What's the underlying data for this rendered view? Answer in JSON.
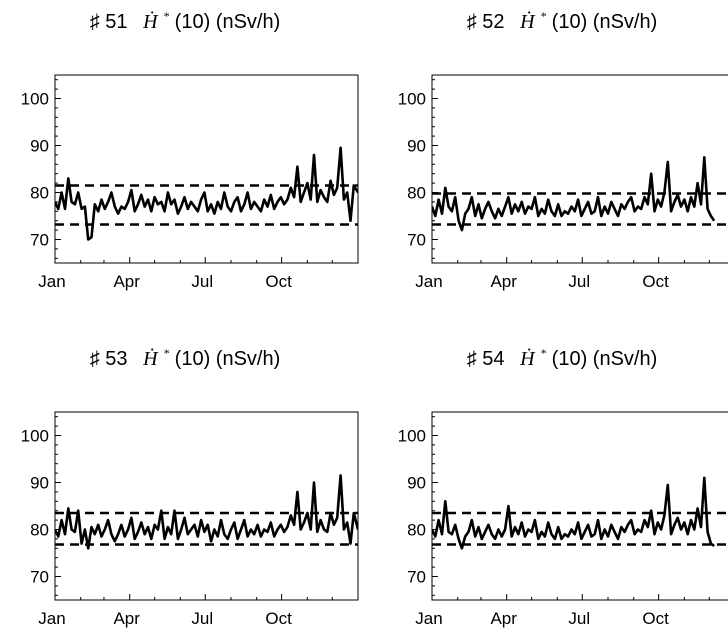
{
  "chart_data": [
    {
      "type": "line",
      "title": "♯ 51  Ḣ*(10) (nSv/h)",
      "title_parts": {
        "prefix": "♯ 51",
        "symbol": "Ḣ",
        "sup": "*",
        "suffix": "(10) (nSv/h)"
      },
      "x_tick_labels": [
        "Jan",
        "Apr",
        "Jul",
        "Oct"
      ],
      "x_ticks": [
        0,
        90,
        181,
        273
      ],
      "xlim": [
        0,
        365
      ],
      "y_tick_labels": [
        "70",
        "80",
        "90",
        "100"
      ],
      "y_ticks": [
        70,
        80,
        90,
        100
      ],
      "ylim": [
        65,
        105
      ],
      "reference_lines": [
        73.2,
        81.5
      ],
      "series": [
        {
          "x": [
            0,
            4,
            8,
            12,
            16,
            20,
            24,
            28,
            32,
            36,
            40,
            44,
            48,
            52,
            56,
            60,
            64,
            68,
            72,
            76,
            80,
            84,
            88,
            92,
            96,
            100,
            104,
            108,
            112,
            116,
            120,
            124,
            128,
            132,
            136,
            140,
            144,
            148,
            152,
            156,
            160,
            164,
            168,
            172,
            176,
            180,
            184,
            188,
            192,
            196,
            200,
            204,
            208,
            212,
            216,
            220,
            224,
            228,
            232,
            236,
            240,
            244,
            248,
            252,
            256,
            260,
            264,
            268,
            272,
            276,
            280,
            284,
            288,
            292,
            296,
            300,
            304,
            308,
            312,
            316,
            320,
            324,
            328,
            332,
            336,
            340,
            344,
            348,
            352,
            356,
            360,
            365
          ],
          "y": [
            78,
            76.5,
            80,
            76.5,
            83,
            78,
            77.5,
            80,
            76.5,
            77,
            70,
            70.5,
            77.5,
            76,
            78.5,
            76.5,
            78,
            80,
            77,
            75.5,
            77,
            76.5,
            78,
            80.5,
            76,
            77.5,
            79.5,
            77,
            78.5,
            76,
            79,
            77.5,
            78,
            76,
            80,
            77.5,
            78.5,
            75.5,
            77,
            79,
            76.5,
            78,
            77,
            76,
            78.5,
            80,
            76,
            77.5,
            75.5,
            78,
            76.5,
            80,
            77,
            76,
            78,
            79,
            76,
            77.5,
            80,
            76.5,
            78,
            77,
            76,
            78.5,
            77,
            79.5,
            76.5,
            78,
            79,
            77.5,
            78.5,
            81,
            79,
            85.5,
            78,
            80,
            82,
            78.5,
            88,
            78,
            80.5,
            79,
            78,
            82.5,
            79.5,
            81,
            89.5,
            78.5,
            80,
            74,
            81.5,
            80
          ]
        }
      ]
    },
    {
      "type": "line",
      "title": "♯ 52  Ḣ*(10) (nSv/h)",
      "title_parts": {
        "prefix": "♯ 52",
        "symbol": "Ḣ",
        "sup": "*",
        "suffix": "(10) (nSv/h)"
      },
      "x_tick_labels": [
        "Jan",
        "Apr",
        "Jul",
        "Oct"
      ],
      "x_ticks": [
        0,
        90,
        181,
        273
      ],
      "xlim": [
        0,
        365
      ],
      "y_tick_labels": [
        "70",
        "80",
        "90",
        "100"
      ],
      "y_ticks": [
        70,
        80,
        90,
        100
      ],
      "ylim": [
        65,
        105
      ],
      "reference_lines": [
        73.2,
        79.8
      ],
      "series": [
        {
          "x": [
            0,
            4,
            8,
            12,
            16,
            20,
            24,
            28,
            32,
            36,
            40,
            44,
            48,
            52,
            56,
            60,
            64,
            68,
            72,
            76,
            80,
            84,
            88,
            92,
            96,
            100,
            104,
            108,
            112,
            116,
            120,
            124,
            128,
            132,
            136,
            140,
            144,
            148,
            152,
            156,
            160,
            164,
            168,
            172,
            176,
            180,
            184,
            188,
            192,
            196,
            200,
            204,
            208,
            212,
            216,
            220,
            224,
            228,
            232,
            236,
            240,
            244,
            248,
            252,
            256,
            260,
            264,
            268,
            272,
            276,
            280,
            284,
            288,
            292,
            296,
            300,
            304,
            308,
            312,
            316,
            320,
            324,
            328,
            332,
            336,
            340
          ],
          "y": [
            77,
            75,
            78.5,
            75.5,
            81,
            77,
            76,
            79,
            74,
            72,
            75.5,
            76.5,
            79,
            75,
            77.5,
            74.5,
            76.5,
            78,
            76,
            74.5,
            76.5,
            75,
            77,
            79,
            75.5,
            77.5,
            76,
            78,
            75.5,
            77,
            76.5,
            79,
            75,
            76.5,
            75.5,
            78.5,
            76,
            75,
            77.5,
            75,
            76,
            75.5,
            77,
            76,
            78.5,
            75,
            76.5,
            78,
            75.5,
            76,
            79,
            75,
            77,
            75.5,
            78,
            76.5,
            75,
            77.5,
            76.5,
            78,
            79,
            76,
            77,
            76.5,
            79,
            77.5,
            84,
            76,
            78.5,
            77,
            80,
            86.5,
            76,
            78,
            79.5,
            77,
            78.5,
            76,
            79,
            77,
            82,
            77.5,
            87.5,
            76.5,
            75,
            74
          ]
        }
      ]
    },
    {
      "type": "line",
      "title": "♯ 53  Ḣ*(10) (nSv/h)",
      "title_parts": {
        "prefix": "♯ 53",
        "symbol": "Ḣ",
        "sup": "*",
        "suffix": "(10) (nSv/h)"
      },
      "x_tick_labels": [
        "Jan",
        "Apr",
        "Jul",
        "Oct"
      ],
      "x_ticks": [
        0,
        90,
        181,
        273
      ],
      "xlim": [
        0,
        365
      ],
      "y_tick_labels": [
        "70",
        "80",
        "90",
        "100"
      ],
      "y_ticks": [
        70,
        80,
        90,
        100
      ],
      "ylim": [
        65,
        105
      ],
      "reference_lines": [
        76.8,
        83.5
      ],
      "series": [
        {
          "x": [
            0,
            4,
            8,
            12,
            16,
            20,
            24,
            28,
            32,
            36,
            40,
            44,
            48,
            52,
            56,
            60,
            64,
            68,
            72,
            76,
            80,
            84,
            88,
            92,
            96,
            100,
            104,
            108,
            112,
            116,
            120,
            124,
            128,
            132,
            136,
            140,
            144,
            148,
            152,
            156,
            160,
            164,
            168,
            172,
            176,
            180,
            184,
            188,
            192,
            196,
            200,
            204,
            208,
            212,
            216,
            220,
            224,
            228,
            232,
            236,
            240,
            244,
            248,
            252,
            256,
            260,
            264,
            268,
            272,
            276,
            280,
            284,
            288,
            292,
            296,
            300,
            304,
            308,
            312,
            316,
            320,
            324,
            328,
            332,
            336,
            340,
            344,
            348,
            352,
            356,
            360,
            365
          ],
          "y": [
            80,
            78.5,
            82,
            79,
            84.5,
            80,
            79.5,
            84,
            77,
            80,
            76,
            80.5,
            79,
            81,
            78.5,
            80,
            82,
            79,
            77.5,
            79,
            81,
            78.5,
            80,
            82.5,
            78,
            79.5,
            81.5,
            79,
            80.5,
            78,
            81,
            80,
            84,
            78,
            80.5,
            79,
            84,
            78,
            80,
            82.5,
            79,
            80,
            81,
            78.5,
            82,
            79.5,
            81,
            77.5,
            80,
            78.5,
            82,
            79,
            78,
            80,
            81.5,
            78,
            80,
            82,
            78.5,
            80,
            79,
            81,
            78.5,
            80,
            79.5,
            81.5,
            78.5,
            80,
            81,
            79.5,
            80.5,
            83,
            81,
            88,
            80,
            81.5,
            83.5,
            80,
            90,
            79.5,
            82,
            80,
            79.5,
            83.5,
            81,
            82.5,
            91.5,
            80,
            81.5,
            77,
            83.5,
            80
          ]
        }
      ]
    },
    {
      "type": "line",
      "title": "♯ 54  Ḣ*(10) (nSv/h)",
      "title_parts": {
        "prefix": "♯ 54",
        "symbol": "Ḣ",
        "sup": "*",
        "suffix": "(10) (nSv/h)"
      },
      "x_tick_labels": [
        "Jan",
        "Apr",
        "Jul",
        "Oct"
      ],
      "x_ticks": [
        0,
        90,
        181,
        273
      ],
      "xlim": [
        0,
        365
      ],
      "y_tick_labels": [
        "70",
        "80",
        "90",
        "100"
      ],
      "y_ticks": [
        70,
        80,
        90,
        100
      ],
      "ylim": [
        65,
        105
      ],
      "reference_lines": [
        76.8,
        83.5
      ],
      "series": [
        {
          "x": [
            0,
            4,
            8,
            12,
            16,
            20,
            24,
            28,
            32,
            36,
            40,
            44,
            48,
            52,
            56,
            60,
            64,
            68,
            72,
            76,
            80,
            84,
            88,
            92,
            96,
            100,
            104,
            108,
            112,
            116,
            120,
            124,
            128,
            132,
            136,
            140,
            144,
            148,
            152,
            156,
            160,
            164,
            168,
            172,
            176,
            180,
            184,
            188,
            192,
            196,
            200,
            204,
            208,
            212,
            216,
            220,
            224,
            228,
            232,
            236,
            240,
            244,
            248,
            252,
            256,
            260,
            264,
            268,
            272,
            276,
            280,
            284,
            288,
            292,
            296,
            300,
            304,
            308,
            312,
            316,
            320,
            324,
            328,
            332,
            336,
            340
          ],
          "y": [
            80,
            78.5,
            82,
            79,
            86,
            79.5,
            79,
            81,
            78,
            76,
            78.5,
            79.5,
            82,
            78.5,
            80.5,
            78,
            79.5,
            81,
            79,
            78,
            80,
            78.5,
            80,
            85,
            78.5,
            80.5,
            79,
            81.5,
            78.5,
            80,
            79.5,
            82,
            78,
            79.5,
            78.5,
            81.5,
            79,
            78,
            80.5,
            78,
            79,
            78.5,
            80,
            79,
            81.5,
            78,
            79.5,
            81,
            78.5,
            79,
            82,
            78,
            80,
            78.5,
            81,
            79.5,
            78,
            80.5,
            79.5,
            81,
            82,
            79,
            80,
            79.5,
            82,
            80.5,
            84,
            79,
            81.5,
            80,
            83,
            89.5,
            79,
            81,
            82.5,
            80,
            81.5,
            79,
            82,
            80,
            84.5,
            80.5,
            91,
            79.5,
            77,
            76.5
          ]
        }
      ]
    }
  ]
}
